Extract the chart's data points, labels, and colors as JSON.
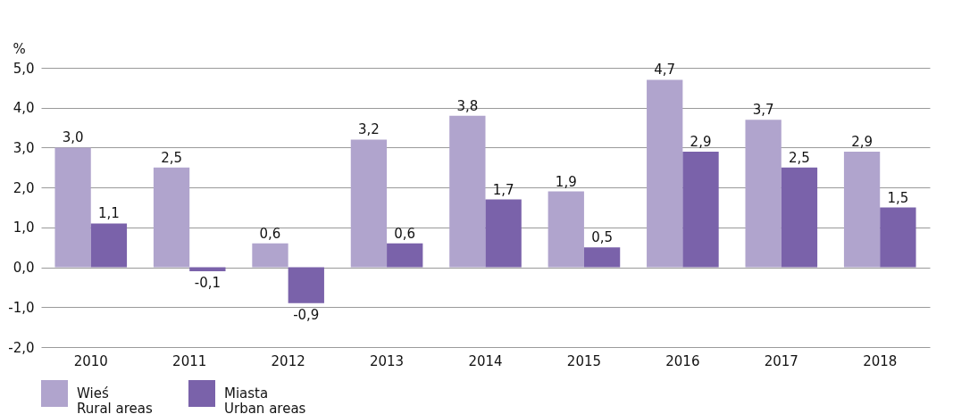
{
  "chart_data": {
    "type": "bar",
    "ylabel": "%",
    "categories": [
      "2010",
      "2011",
      "2012",
      "2013",
      "2014",
      "2015",
      "2016",
      "2017",
      "2018"
    ],
    "series": [
      {
        "name": "Wieś\nRural areas",
        "color": "#b0a4cd",
        "values": [
          3.0,
          2.5,
          0.6,
          3.2,
          3.8,
          1.9,
          4.7,
          3.7,
          2.9
        ],
        "value_labels": [
          "3,0",
          "2,5",
          "0,6",
          "3,2",
          "3,8",
          "1,9",
          "4,7",
          "3,7",
          "2,9"
        ]
      },
      {
        "name": "Miasta\nUrban areas",
        "color": "#7a62aa",
        "values": [
          1.1,
          -0.1,
          -0.9,
          0.6,
          1.7,
          0.5,
          2.9,
          2.5,
          1.5
        ],
        "value_labels": [
          "1,1",
          "-0,1",
          "-0,9",
          "0,6",
          "1,7",
          "0,5",
          "2,9",
          "2,5",
          "1,5"
        ]
      }
    ],
    "ylim": [
      -2,
      5
    ],
    "yticks": [
      {
        "value": -2,
        "label": "-2,0"
      },
      {
        "value": -1,
        "label": "-1,0"
      },
      {
        "value": 0,
        "label": "0,0"
      },
      {
        "value": 1,
        "label": "1,0"
      },
      {
        "value": 2,
        "label": "2,0"
      },
      {
        "value": 3,
        "label": "3,0"
      },
      {
        "value": 4,
        "label": "4,0"
      },
      {
        "value": 5,
        "label": "5,0"
      }
    ],
    "grid": "y",
    "legend": "bottom"
  }
}
